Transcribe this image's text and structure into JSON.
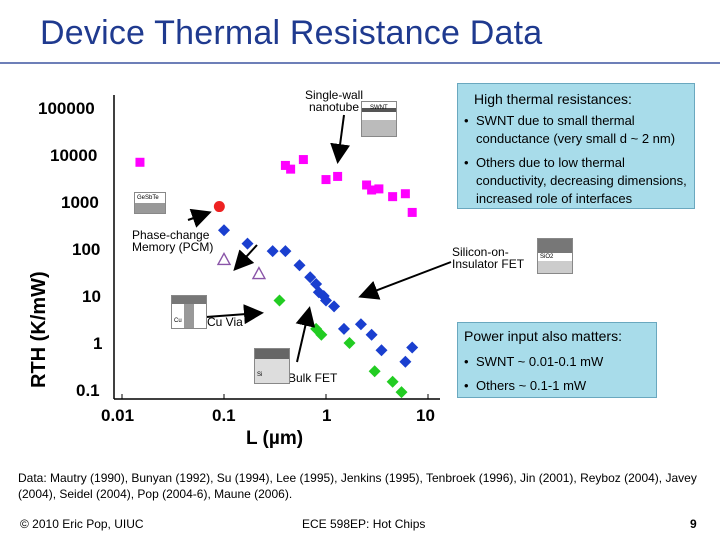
{
  "title": "Device Thermal Resistance Data",
  "chart_data": {
    "type": "scatter",
    "xlabel": "L (µm)",
    "ylabel": "RTH (K/mW)",
    "xscale": "log",
    "yscale": "log",
    "xlim": [
      0.01,
      10
    ],
    "ylim": [
      0.1,
      100000
    ],
    "x_ticks": [
      "0.01",
      "0.1",
      "1",
      "10"
    ],
    "y_ticks": [
      "100000",
      "10000",
      "1000",
      "100",
      "10",
      "1",
      "0.1"
    ],
    "grid": false,
    "series": [
      {
        "marker": "magenta-square",
        "color": "#ff00ff",
        "points": [
          [
            0.015,
            7000
          ],
          [
            0.4,
            6000
          ],
          [
            0.45,
            5000
          ],
          [
            0.6,
            8000
          ],
          [
            1.0,
            3000
          ],
          [
            1.3,
            3500
          ],
          [
            2.5,
            2300
          ],
          [
            2.8,
            1800
          ],
          [
            3.3,
            1900
          ],
          [
            4.5,
            1300
          ],
          [
            6.0,
            1500
          ],
          [
            7.0,
            600
          ]
        ]
      },
      {
        "marker": "blue-diamond",
        "color": "#1a3fcf",
        "points": [
          [
            0.1,
            250
          ],
          [
            0.17,
            130
          ],
          [
            0.3,
            90
          ],
          [
            0.4,
            90
          ],
          [
            0.55,
            45
          ],
          [
            0.7,
            25
          ],
          [
            0.8,
            18
          ],
          [
            0.85,
            12
          ],
          [
            1.0,
            8
          ],
          [
            0.95,
            10
          ],
          [
            1.2,
            6
          ],
          [
            1.5,
            2
          ],
          [
            2.2,
            2.5
          ],
          [
            2.8,
            1.5
          ],
          [
            3.5,
            0.7
          ],
          [
            6.0,
            0.4
          ],
          [
            7.0,
            0.8
          ]
        ]
      },
      {
        "marker": "green-diamond",
        "color": "#22cc22",
        "points": [
          [
            0.35,
            8
          ],
          [
            0.8,
            2
          ],
          [
            0.9,
            1.5
          ],
          [
            1.7,
            1.0
          ],
          [
            3.0,
            0.25
          ],
          [
            4.5,
            0.15
          ],
          [
            5.5,
            0.09
          ]
        ]
      },
      {
        "marker": "red-circle",
        "color": "#ee2222",
        "points": [
          [
            0.09,
            800
          ]
        ]
      },
      {
        "marker": "purple-triangle-open",
        "color": "#8a55a8",
        "points": [
          [
            0.1,
            60
          ],
          [
            0.22,
            30
          ]
        ]
      }
    ]
  },
  "annotations": {
    "swnt": "Single-wall\nnanotube",
    "pcm": "Phase-change\nMemory (PCM)",
    "soi": "Silicon-on-\nInsulator FET",
    "cu": "Cu Via",
    "bulk": "Bulk FET"
  },
  "thumbs": {
    "swnt": "SWNT",
    "pcm": "GeSbTe",
    "soi": "SiO2",
    "cu": "Cu",
    "bulk": "Si"
  },
  "box1": {
    "heading": "High thermal resistances:",
    "bullets": [
      "SWNT due to small thermal conductance (very small d ~ 2 nm)",
      "Others due to low thermal conductivity, decreasing dimensions, increased role of interfaces"
    ]
  },
  "box2": {
    "heading": "Power input also matters:",
    "bullets": [
      "SWNT ~ 0.01-0.1 mW",
      "Others ~ 0.1-1 mW"
    ]
  },
  "note": "Data: Mautry (1990), Bunyan (1992), Su (1994), Lee (1995), Jenkins (1995), Tenbroek (1996), Jin (2001), Reyboz (2004), Javey (2004), Seidel (2004), Pop (2004-6), Maune (2006).",
  "footer": {
    "left": "© 2010 Eric Pop, UIUC",
    "center": "ECE 598EP: Hot Chips",
    "page": "9"
  },
  "colors": {
    "title": "#1f3a8f",
    "box": "#a8dcea"
  }
}
